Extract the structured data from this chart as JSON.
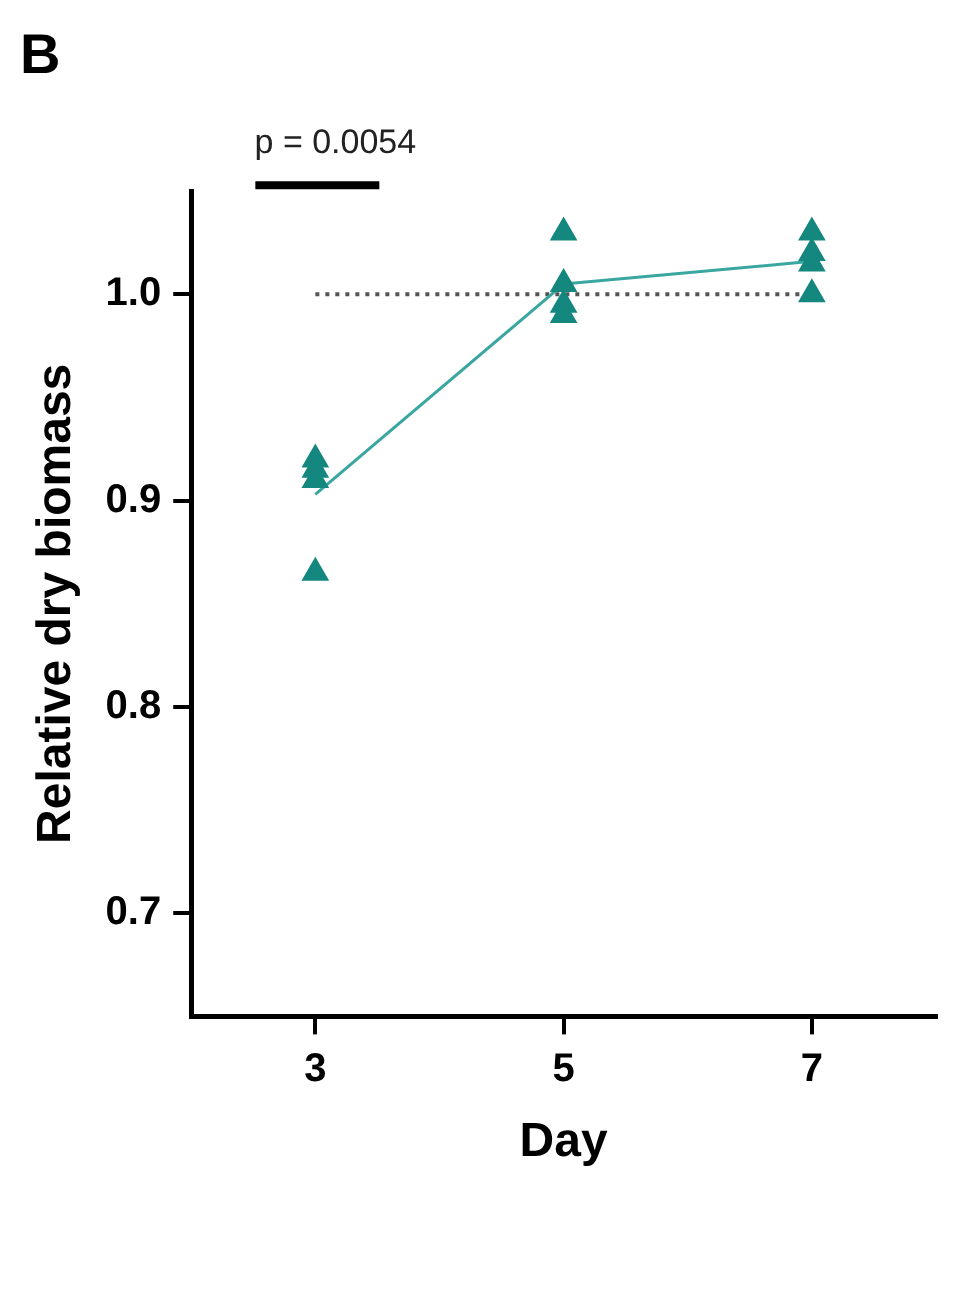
{
  "chart_data": {
    "type": "scatter",
    "title": "B",
    "xlabel": "Day",
    "ylabel": "Relative dry biomass",
    "annotations": [
      "p = 0.0054"
    ],
    "xlim": [
      2,
      8
    ],
    "xticks": [
      3,
      5,
      7
    ],
    "ylim": [
      0.65,
      1.05
    ],
    "yticks": [
      0.7,
      0.8,
      0.9,
      {
        "value": 1.0,
        "label": "1.0"
      }
    ],
    "grid": false,
    "legend": false,
    "marker": "triangle",
    "series": [
      {
        "type": "scatter",
        "color": "#14877f",
        "x": [
          3,
          3,
          3,
          3,
          5,
          5,
          5,
          5,
          7,
          7,
          7,
          7
        ],
        "values": [
          0.92,
          0.915,
          0.91,
          0.865,
          1.03,
          1.005,
          0.995,
          0.99,
          1.03,
          1.02,
          1.015,
          1.0
        ]
      },
      {
        "type": "line",
        "color": "#3aa6a0",
        "x": [
          3,
          5,
          7
        ],
        "values": [
          0.903,
          1.005,
          1.016
        ],
        "marker": "none",
        "line_style": "solid"
      },
      {
        "type": "line",
        "color": "#555555",
        "x": [
          3,
          7
        ],
        "values": [
          1.0,
          1.0
        ],
        "marker": "none",
        "line_style": "dotted"
      }
    ]
  }
}
